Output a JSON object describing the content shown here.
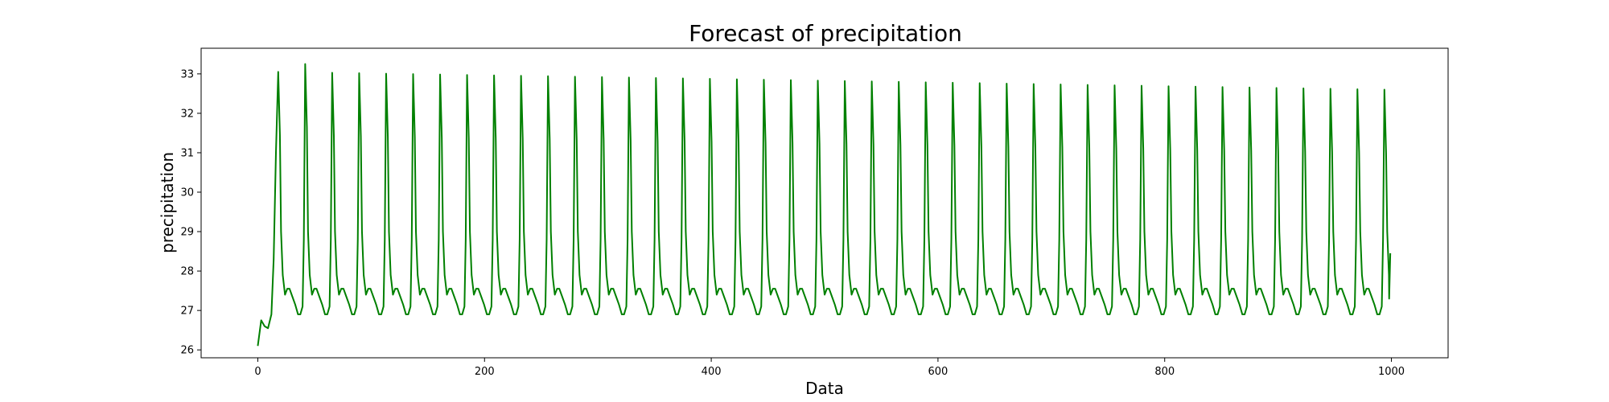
{
  "chart_data": {
    "type": "line",
    "title": "Forecast of precipitation",
    "xlabel": "Data",
    "ylabel": "precipitation",
    "xlim": [
      -50,
      1050
    ],
    "ylim": [
      25.8,
      33.65
    ],
    "xticks": [
      0,
      200,
      400,
      600,
      800,
      1000
    ],
    "yticks": [
      26,
      27,
      28,
      29,
      30,
      31,
      32,
      33
    ],
    "grid": false,
    "legend": "none",
    "series": [
      {
        "color": "#008000",
        "x_range": [
          0,
          999
        ],
        "onset": {
          "x": [
            0,
            3,
            6,
            9,
            12,
            14,
            16,
            18
          ],
          "y": [
            26.1,
            26.75,
            26.6,
            26.55,
            26.9,
            28.3,
            31.0,
            33.05
          ]
        },
        "cycle": {
          "period": 23.8,
          "first_peak_x": 18,
          "peak_y_start": 33.05,
          "peak_y_end": 32.6,
          "main_peak_y": 33.25,
          "trough_y": 26.9,
          "shoulder_y": 27.55,
          "end_y": 28.45
        }
      }
    ]
  }
}
